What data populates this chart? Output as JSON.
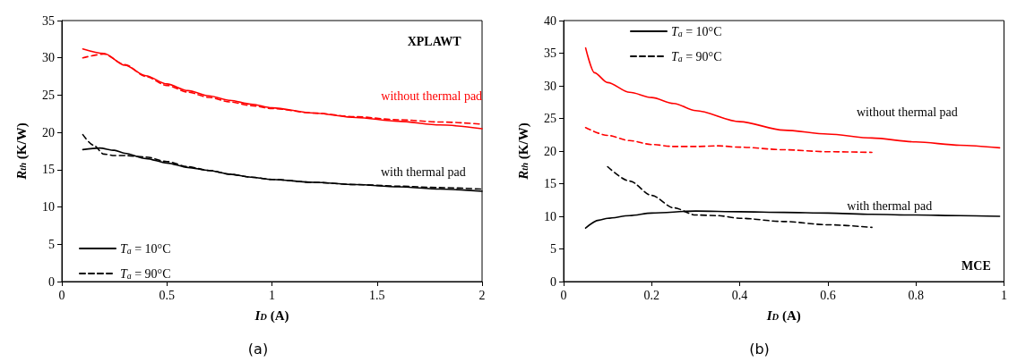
{
  "chart_data": [
    {
      "type": "line",
      "title": "(a)",
      "xlabel": "I$_{D}$ (A)",
      "ylabel": "R$_{th}$ (K/W)",
      "xlim": [
        0,
        2
      ],
      "xticks": [
        0,
        0.5,
        1,
        1.5,
        2
      ],
      "ylim": [
        0,
        35
      ],
      "yticks": [
        0,
        5,
        10,
        15,
        20,
        25,
        30,
        35
      ],
      "legend": "bottom left",
      "marker": "none",
      "annotations": [
        "XPLAWT",
        "without thermal pad",
        "with thermal pad"
      ],
      "series": [
        {
          "color": "#ff0000",
          "line_style": "solid",
          "x": [
            0.1,
            0.2,
            0.3,
            0.4,
            0.5,
            0.6,
            0.7,
            0.8,
            0.9,
            1.0,
            1.2,
            1.4,
            1.6,
            1.8,
            2.0
          ],
          "values": [
            31.2,
            30.6,
            29.0,
            27.6,
            26.5,
            25.6,
            24.9,
            24.3,
            23.8,
            23.3,
            22.6,
            22.0,
            21.5,
            21.0,
            20.5
          ]
        },
        {
          "color": "#ff0000",
          "line_style": "dashed",
          "x": [
            0.1,
            0.2,
            0.3,
            0.4,
            0.5,
            0.6,
            0.7,
            0.8,
            0.9,
            1.0,
            1.2,
            1.4,
            1.6,
            1.8,
            2.0
          ],
          "values": [
            30.0,
            30.5,
            29.1,
            27.5,
            26.3,
            25.4,
            24.7,
            24.1,
            23.6,
            23.2,
            22.6,
            22.1,
            21.7,
            21.4,
            21.1
          ]
        },
        {
          "name": "T$_{a}$ = 10°C",
          "color": "#000000",
          "line_style": "solid",
          "x": [
            0.1,
            0.18,
            0.25,
            0.3,
            0.4,
            0.5,
            0.6,
            0.7,
            0.8,
            0.9,
            1.0,
            1.2,
            1.4,
            1.6,
            1.8,
            2.0
          ],
          "values": [
            17.7,
            17.9,
            17.6,
            17.2,
            16.5,
            15.9,
            15.3,
            14.9,
            14.4,
            14.0,
            13.7,
            13.3,
            13.0,
            12.7,
            12.4,
            12.1
          ]
        },
        {
          "name": "T$_{a}$ = 90°C",
          "color": "#000000",
          "line_style": "dashed",
          "x": [
            0.1,
            0.15,
            0.2,
            0.25,
            0.3,
            0.4,
            0.5,
            0.6,
            0.7,
            0.8,
            0.9,
            1.0,
            1.2,
            1.4,
            1.6,
            1.8,
            2.0
          ],
          "values": [
            19.7,
            18.3,
            17.1,
            16.9,
            16.9,
            16.7,
            16.1,
            15.4,
            14.9,
            14.4,
            14.0,
            13.7,
            13.3,
            13.0,
            12.8,
            12.6,
            12.4
          ]
        }
      ]
    },
    {
      "type": "line",
      "title": "(b)",
      "xlabel": "I$_{D}$ (A)",
      "ylabel": "R$_{th}$ (K/W)",
      "xlim": [
        0,
        1
      ],
      "xticks": [
        0,
        0.2,
        0.4,
        0.6,
        0.8,
        1
      ],
      "ylim": [
        0,
        40
      ],
      "yticks": [
        0,
        5,
        10,
        15,
        20,
        25,
        30,
        35,
        40
      ],
      "legend": "top left",
      "marker": "none",
      "annotations": [
        "MCE",
        "without thermal pad",
        "with thermal pad"
      ],
      "series": [
        {
          "color": "#ff0000",
          "line_style": "solid",
          "x": [
            0.05,
            0.07,
            0.1,
            0.15,
            0.2,
            0.25,
            0.3,
            0.4,
            0.5,
            0.6,
            0.7,
            0.8,
            0.9,
            0.99
          ],
          "values": [
            35.8,
            32.0,
            30.5,
            29.0,
            28.2,
            27.3,
            26.2,
            24.5,
            23.2,
            22.6,
            22.0,
            21.4,
            20.9,
            20.5
          ]
        },
        {
          "color": "#ff0000",
          "line_style": "dashed",
          "x": [
            0.05,
            0.1,
            0.15,
            0.2,
            0.25,
            0.3,
            0.35,
            0.4,
            0.5,
            0.6,
            0.7
          ],
          "values": [
            23.6,
            22.4,
            21.6,
            21.0,
            20.7,
            20.7,
            20.8,
            20.6,
            20.2,
            19.9,
            19.8
          ]
        },
        {
          "name": "T$_{a}$ = 10°C",
          "color": "#000000",
          "line_style": "solid",
          "x": [
            0.05,
            0.08,
            0.1,
            0.15,
            0.2,
            0.3,
            0.4,
            0.5,
            0.6,
            0.7,
            0.8,
            0.9,
            0.99
          ],
          "values": [
            8.2,
            9.4,
            9.7,
            10.1,
            10.5,
            10.8,
            10.7,
            10.6,
            10.5,
            10.3,
            10.2,
            10.1,
            10.0
          ]
        },
        {
          "name": "T$_{a}$ = 90°C",
          "color": "#000000",
          "line_style": "dashed",
          "x": [
            0.1,
            0.15,
            0.2,
            0.25,
            0.3,
            0.35,
            0.4,
            0.5,
            0.6,
            0.7
          ],
          "values": [
            17.6,
            15.4,
            13.2,
            11.3,
            10.2,
            10.1,
            9.7,
            9.2,
            8.7,
            8.3
          ]
        }
      ]
    }
  ]
}
